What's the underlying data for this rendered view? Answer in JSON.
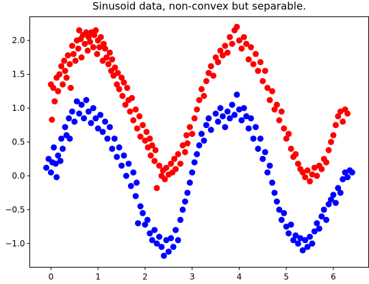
{
  "chart_data": {
    "type": "scatter",
    "title": "Sinusoid data, non-convex but separable.",
    "xlabel": "",
    "ylabel": "",
    "xlim": [
      -0.45,
      6.75
    ],
    "ylim": [
      -1.35,
      2.35
    ],
    "xticks": [
      "0",
      "1",
      "2",
      "3",
      "4",
      "5",
      "6"
    ],
    "yticks": [
      "-1.0",
      "-0.5",
      "0.0",
      "0.5",
      "1.0",
      "1.5",
      "2.0"
    ],
    "grid": false,
    "legend": "none",
    "series": [
      {
        "color": "#ff0000",
        "points": [
          [
            0.0,
            1.35
          ],
          [
            0.02,
            0.83
          ],
          [
            0.05,
            1.3
          ],
          [
            0.08,
            1.1
          ],
          [
            0.12,
            1.45
          ],
          [
            0.15,
            1.25
          ],
          [
            0.18,
            1.5
          ],
          [
            0.22,
            1.62
          ],
          [
            0.25,
            1.35
          ],
          [
            0.28,
            1.7
          ],
          [
            0.3,
            1.55
          ],
          [
            0.33,
            1.45
          ],
          [
            0.36,
            1.78
          ],
          [
            0.4,
            1.65
          ],
          [
            0.42,
            1.3
          ],
          [
            0.45,
            1.92
          ],
          [
            0.48,
            1.8
          ],
          [
            0.52,
            1.7
          ],
          [
            0.55,
            2.0
          ],
          [
            0.58,
            1.88
          ],
          [
            0.6,
            2.15
          ],
          [
            0.63,
            2.02
          ],
          [
            0.65,
            1.75
          ],
          [
            0.68,
            2.08
          ],
          [
            0.72,
            1.95
          ],
          [
            0.75,
            2.12
          ],
          [
            0.78,
            1.85
          ],
          [
            0.8,
            2.05
          ],
          [
            0.83,
            1.98
          ],
          [
            0.86,
            2.12
          ],
          [
            0.9,
            1.9
          ],
          [
            0.92,
            2.08
          ],
          [
            0.95,
            2.15
          ],
          [
            0.98,
            1.8
          ],
          [
            1.0,
            2.0
          ],
          [
            1.03,
            1.9
          ],
          [
            1.06,
            2.05
          ],
          [
            1.1,
            1.7
          ],
          [
            1.12,
            1.95
          ],
          [
            1.15,
            1.88
          ],
          [
            1.18,
            1.75
          ],
          [
            1.22,
            1.65
          ],
          [
            1.25,
            1.82
          ],
          [
            1.28,
            1.55
          ],
          [
            1.3,
            1.72
          ],
          [
            1.33,
            1.48
          ],
          [
            1.36,
            1.6
          ],
          [
            1.4,
            1.35
          ],
          [
            1.42,
            1.52
          ],
          [
            1.45,
            1.28
          ],
          [
            1.5,
            1.45
          ],
          [
            1.52,
            1.18
          ],
          [
            1.55,
            1.38
          ],
          [
            1.58,
            1.05
          ],
          [
            1.62,
            1.3
          ],
          [
            1.65,
            1.12
          ],
          [
            1.68,
            0.95
          ],
          [
            1.72,
            1.15
          ],
          [
            1.75,
            0.82
          ],
          [
            1.8,
            0.98
          ],
          [
            1.83,
            0.7
          ],
          [
            1.88,
            0.88
          ],
          [
            1.9,
            0.58
          ],
          [
            1.95,
            0.75
          ],
          [
            2.0,
            0.52
          ],
          [
            2.03,
            0.65
          ],
          [
            2.06,
            0.42
          ],
          [
            2.1,
            0.55
          ],
          [
            2.12,
            0.3
          ],
          [
            2.15,
            0.45
          ],
          [
            2.2,
            0.22
          ],
          [
            2.22,
            0.38
          ],
          [
            2.25,
            -0.18
          ],
          [
            2.3,
            0.15
          ],
          [
            2.35,
            0.0
          ],
          [
            2.38,
            0.08
          ],
          [
            2.42,
            -0.05
          ],
          [
            2.45,
            0.12
          ],
          [
            2.5,
            0.02
          ],
          [
            2.55,
            0.18
          ],
          [
            2.58,
            0.05
          ],
          [
            2.62,
            0.25
          ],
          [
            2.65,
            0.1
          ],
          [
            2.7,
            0.32
          ],
          [
            2.75,
            0.18
          ],
          [
            2.8,
            0.45
          ],
          [
            2.85,
            0.35
          ],
          [
            2.88,
            0.6
          ],
          [
            2.9,
            0.48
          ],
          [
            2.95,
            0.72
          ],
          [
            3.0,
            0.62
          ],
          [
            3.05,
            0.85
          ],
          [
            3.1,
            0.98
          ],
          [
            3.15,
            1.12
          ],
          [
            3.2,
            1.28
          ],
          [
            3.25,
            1.18
          ],
          [
            3.3,
            1.4
          ],
          [
            3.35,
            1.52
          ],
          [
            3.4,
            1.62
          ],
          [
            3.45,
            1.48
          ],
          [
            3.5,
            1.75
          ],
          [
            3.55,
            1.68
          ],
          [
            3.6,
            1.85
          ],
          [
            3.65,
            1.78
          ],
          [
            3.7,
            1.92
          ],
          [
            3.75,
            1.82
          ],
          [
            3.8,
            2.05
          ],
          [
            3.85,
            1.95
          ],
          [
            3.9,
            2.15
          ],
          [
            3.95,
            2.2
          ],
          [
            4.0,
            2.0
          ],
          [
            4.05,
            1.88
          ],
          [
            4.1,
            2.05
          ],
          [
            4.15,
            1.95
          ],
          [
            4.2,
            1.72
          ],
          [
            4.25,
            1.9
          ],
          [
            4.3,
            1.65
          ],
          [
            4.35,
            1.8
          ],
          [
            4.4,
            1.55
          ],
          [
            4.45,
            1.68
          ],
          [
            4.5,
            1.4
          ],
          [
            4.55,
            1.55
          ],
          [
            4.6,
            1.3
          ],
          [
            4.65,
            1.12
          ],
          [
            4.7,
            1.25
          ],
          [
            4.75,
            0.98
          ],
          [
            4.8,
            1.05
          ],
          [
            4.85,
            0.82
          ],
          [
            4.9,
            0.95
          ],
          [
            4.95,
            0.7
          ],
          [
            5.0,
            0.55
          ],
          [
            5.05,
            0.62
          ],
          [
            5.1,
            0.4
          ],
          [
            5.15,
            0.28
          ],
          [
            5.2,
            0.32
          ],
          [
            5.25,
            0.18
          ],
          [
            5.3,
            0.1
          ],
          [
            5.35,
            0.05
          ],
          [
            5.4,
            -0.02
          ],
          [
            5.45,
            0.08
          ],
          [
            5.5,
            -0.08
          ],
          [
            5.55,
            0.02
          ],
          [
            5.6,
            0.12
          ],
          [
            5.65,
            0.0
          ],
          [
            5.7,
            0.15
          ],
          [
            5.75,
            0.1
          ],
          [
            5.8,
            0.25
          ],
          [
            5.85,
            0.2
          ],
          [
            5.9,
            0.38
          ],
          [
            5.95,
            0.5
          ],
          [
            6.0,
            0.6
          ],
          [
            6.05,
            0.75
          ],
          [
            6.1,
            0.88
          ],
          [
            6.15,
            0.95
          ],
          [
            6.2,
            0.8
          ],
          [
            6.25,
            0.98
          ],
          [
            6.3,
            0.92
          ]
        ]
      },
      {
        "color": "#0000ff",
        "points": [
          [
            -0.1,
            0.12
          ],
          [
            -0.05,
            0.25
          ],
          [
            0.0,
            0.05
          ],
          [
            0.03,
            0.2
          ],
          [
            0.06,
            0.42
          ],
          [
            0.1,
            0.18
          ],
          [
            0.12,
            -0.02
          ],
          [
            0.15,
            0.3
          ],
          [
            0.2,
            0.22
          ],
          [
            0.22,
            0.55
          ],
          [
            0.25,
            0.4
          ],
          [
            0.3,
            0.72
          ],
          [
            0.33,
            0.6
          ],
          [
            0.38,
            0.85
          ],
          [
            0.4,
            0.55
          ],
          [
            0.45,
            0.95
          ],
          [
            0.5,
            0.8
          ],
          [
            0.55,
            1.1
          ],
          [
            0.6,
            0.92
          ],
          [
            0.65,
            1.05
          ],
          [
            0.7,
            0.85
          ],
          [
            0.75,
            1.12
          ],
          [
            0.8,
            0.95
          ],
          [
            0.85,
            0.78
          ],
          [
            0.9,
            1.0
          ],
          [
            0.95,
            0.85
          ],
          [
            1.0,
            0.7
          ],
          [
            1.05,
            0.9
          ],
          [
            1.1,
            0.65
          ],
          [
            1.15,
            0.8
          ],
          [
            1.2,
            0.55
          ],
          [
            1.25,
            0.72
          ],
          [
            1.3,
            0.4
          ],
          [
            1.35,
            0.55
          ],
          [
            1.4,
            0.28
          ],
          [
            1.45,
            0.42
          ],
          [
            1.5,
            0.15
          ],
          [
            1.55,
            0.3
          ],
          [
            1.6,
            0.0
          ],
          [
            1.65,
            0.18
          ],
          [
            1.7,
            -0.15
          ],
          [
            1.75,
            0.05
          ],
          [
            1.8,
            -0.3
          ],
          [
            1.82,
            -0.1
          ],
          [
            1.85,
            -0.7
          ],
          [
            1.9,
            -0.45
          ],
          [
            1.95,
            -0.55
          ],
          [
            2.0,
            -0.72
          ],
          [
            2.05,
            -0.65
          ],
          [
            2.1,
            -0.85
          ],
          [
            2.15,
            -0.95
          ],
          [
            2.2,
            -0.8
          ],
          [
            2.25,
            -1.0
          ],
          [
            2.3,
            -0.9
          ],
          [
            2.35,
            -1.05
          ],
          [
            2.4,
            -1.18
          ],
          [
            2.45,
            -0.95
          ],
          [
            2.5,
            -1.12
          ],
          [
            2.55,
            -0.92
          ],
          [
            2.6,
            -1.05
          ],
          [
            2.65,
            -0.8
          ],
          [
            2.7,
            -0.95
          ],
          [
            2.75,
            -0.65
          ],
          [
            2.8,
            -0.5
          ],
          [
            2.85,
            -0.38
          ],
          [
            2.9,
            -0.25
          ],
          [
            2.95,
            -0.1
          ],
          [
            3.0,
            0.05
          ],
          [
            3.05,
            0.2
          ],
          [
            3.1,
            0.32
          ],
          [
            3.15,
            0.45
          ],
          [
            3.2,
            0.62
          ],
          [
            3.25,
            0.52
          ],
          [
            3.3,
            0.75
          ],
          [
            3.35,
            0.85
          ],
          [
            3.4,
            0.68
          ],
          [
            3.5,
            0.92
          ],
          [
            3.55,
            0.8
          ],
          [
            3.6,
            1.0
          ],
          [
            3.65,
            0.88
          ],
          [
            3.7,
            0.72
          ],
          [
            3.75,
            0.95
          ],
          [
            3.8,
            0.85
          ],
          [
            3.85,
            1.05
          ],
          [
            3.9,
            0.9
          ],
          [
            3.95,
            1.2
          ],
          [
            4.0,
            0.98
          ],
          [
            4.05,
            0.82
          ],
          [
            4.1,
            1.0
          ],
          [
            4.15,
            0.88
          ],
          [
            4.2,
            0.7
          ],
          [
            4.25,
            0.85
          ],
          [
            4.3,
            0.55
          ],
          [
            4.35,
            0.72
          ],
          [
            4.4,
            0.4
          ],
          [
            4.45,
            0.55
          ],
          [
            4.5,
            0.25
          ],
          [
            4.55,
            0.35
          ],
          [
            4.6,
            0.05
          ],
          [
            4.65,
            0.15
          ],
          [
            4.7,
            -0.1
          ],
          [
            4.75,
            -0.25
          ],
          [
            4.8,
            -0.38
          ],
          [
            4.85,
            -0.5
          ],
          [
            4.9,
            -0.65
          ],
          [
            4.95,
            -0.55
          ],
          [
            5.0,
            -0.75
          ],
          [
            5.05,
            -0.85
          ],
          [
            5.1,
            -0.72
          ],
          [
            5.15,
            -0.95
          ],
          [
            5.2,
            -0.88
          ],
          [
            5.25,
            -1.0
          ],
          [
            5.3,
            -0.92
          ],
          [
            5.35,
            -1.1
          ],
          [
            5.4,
            -0.95
          ],
          [
            5.45,
            -1.05
          ],
          [
            5.5,
            -0.9
          ],
          [
            5.55,
            -1.0
          ],
          [
            5.6,
            -0.82
          ],
          [
            5.65,
            -0.7
          ],
          [
            5.7,
            -0.78
          ],
          [
            5.75,
            -0.6
          ],
          [
            5.8,
            -0.5
          ],
          [
            5.85,
            -0.65
          ],
          [
            5.9,
            -0.42
          ],
          [
            5.95,
            -0.35
          ],
          [
            6.0,
            -0.28
          ],
          [
            6.05,
            -0.4
          ],
          [
            6.1,
            -0.18
          ],
          [
            6.15,
            -0.25
          ],
          [
            6.2,
            -0.05
          ],
          [
            6.25,
            0.05
          ],
          [
            6.3,
            -0.02
          ],
          [
            6.35,
            0.08
          ],
          [
            6.4,
            0.05
          ]
        ]
      }
    ]
  }
}
